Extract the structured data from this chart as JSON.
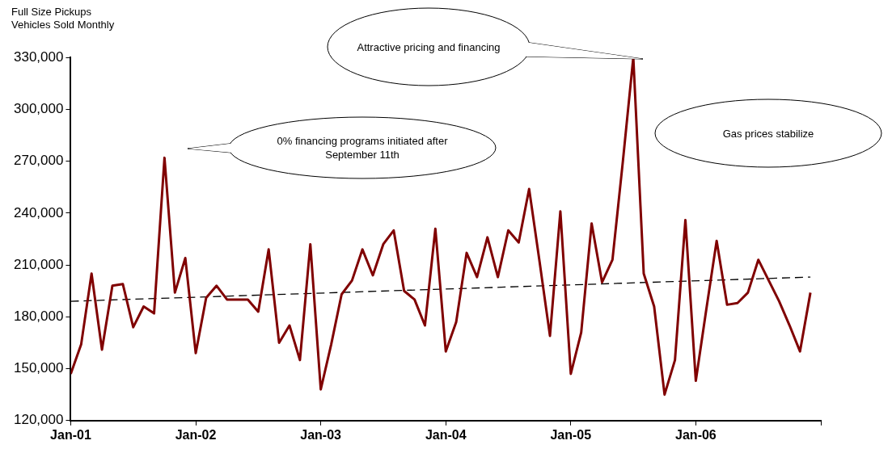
{
  "chart_data": {
    "type": "line",
    "title": "Full Size Pickups",
    "subtitle": "Vehicles Sold Monthly",
    "xlim": [
      "2001-01",
      "2007-01"
    ],
    "xticks": [
      {
        "value": "2001-01",
        "label": "Jan-01"
      },
      {
        "value": "2002-01",
        "label": "Jan-02"
      },
      {
        "value": "2003-01",
        "label": "Jan-03"
      },
      {
        "value": "2004-01",
        "label": "Jan-04"
      },
      {
        "value": "2005-01",
        "label": "Jan-05"
      },
      {
        "value": "2006-01",
        "label": "Jan-06"
      },
      {
        "value": "2007-01",
        "label": null
      }
    ],
    "ylim": [
      120000,
      330000
    ],
    "yticks": [
      {
        "value": 120000,
        "label": "120,000"
      },
      {
        "value": 150000,
        "label": "150,000"
      },
      {
        "value": 180000,
        "label": "180,000"
      },
      {
        "value": 210000,
        "label": "210,000"
      },
      {
        "value": 240000,
        "label": "240,000"
      },
      {
        "value": 270000,
        "label": "270,000"
      },
      {
        "value": 300000,
        "label": "300,000"
      },
      {
        "value": 330000,
        "label": "330,000"
      }
    ],
    "grid": false,
    "legend": false,
    "marker": "none",
    "x": [
      "2001-01",
      "2001-02",
      "2001-03",
      "2001-04",
      "2001-05",
      "2001-06",
      "2001-07",
      "2001-08",
      "2001-09",
      "2001-10",
      "2001-11",
      "2001-12",
      "2002-01",
      "2002-02",
      "2002-03",
      "2002-04",
      "2002-05",
      "2002-06",
      "2002-07",
      "2002-08",
      "2002-09",
      "2002-10",
      "2002-11",
      "2002-12",
      "2003-01",
      "2003-02",
      "2003-03",
      "2003-04",
      "2003-05",
      "2003-06",
      "2003-07",
      "2003-08",
      "2003-09",
      "2003-10",
      "2003-11",
      "2003-12",
      "2004-01",
      "2004-02",
      "2004-03",
      "2004-04",
      "2004-05",
      "2004-06",
      "2004-07",
      "2004-08",
      "2004-09",
      "2004-10",
      "2004-11",
      "2004-12",
      "2005-01",
      "2005-02",
      "2005-03",
      "2005-04",
      "2005-05",
      "2005-06",
      "2005-07",
      "2005-08",
      "2005-09",
      "2005-10",
      "2005-11",
      "2005-12",
      "2006-01",
      "2006-02",
      "2006-03",
      "2006-04",
      "2006-05",
      "2006-06",
      "2006-07",
      "2006-08",
      "2006-09",
      "2006-10",
      "2006-11",
      "2006-12"
    ],
    "series": [
      {
        "color": "#800000",
        "line_style": "solid",
        "values": [
          147000,
          164000,
          205000,
          161000,
          198000,
          199000,
          174000,
          186000,
          182000,
          272000,
          194000,
          214000,
          159000,
          191000,
          198000,
          190000,
          190000,
          190000,
          183000,
          219000,
          165000,
          175000,
          155000,
          222000,
          138000,
          164000,
          193000,
          201000,
          219000,
          204000,
          222000,
          230000,
          195000,
          190000,
          175000,
          231000,
          160000,
          177000,
          217000,
          203000,
          226000,
          203000,
          230000,
          223000,
          254000,
          212000,
          169000,
          241000,
          147000,
          171000,
          234000,
          200000,
          213000,
          270000,
          330000,
          205000,
          186000,
          135000,
          155000,
          236000,
          143000,
          184000,
          224000,
          187000,
          188000,
          194000,
          213000,
          201000,
          189000,
          175000,
          160000,
          194000
        ]
      },
      {
        "type": "line",
        "color": "#000000",
        "line_style": "dashed",
        "x": [
          "2001-01",
          "2006-12"
        ],
        "values": [
          189000,
          203000
        ]
      }
    ],
    "annotations": [
      "0% financing programs initiated after September 11th",
      "Attractive pricing and financing",
      "Gas prices stabilize"
    ]
  }
}
